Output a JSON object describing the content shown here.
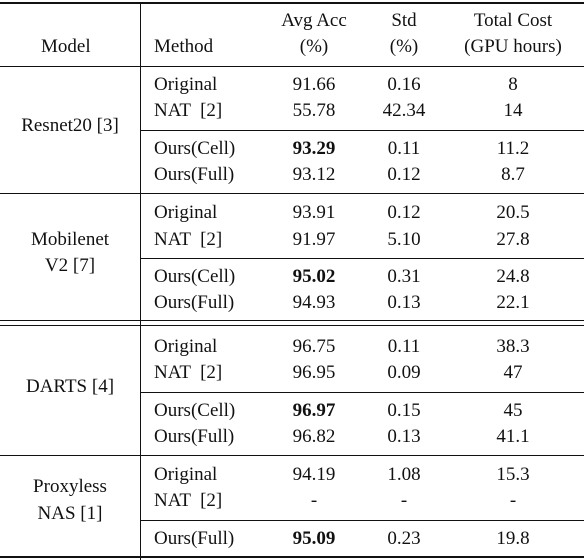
{
  "table": {
    "header": {
      "model": "Model",
      "method": "Method",
      "avg_acc_1": "Avg Acc",
      "avg_acc_2": "(%)",
      "std_1": "Std",
      "std_2": "(%)",
      "cost_1": "Total Cost",
      "cost_2": "(GPU hours)"
    },
    "groups": [
      {
        "model_lines": [
          "Resnet20 [3]"
        ],
        "rows": [
          {
            "method": "Original",
            "acc": "91.66",
            "std": "0.16",
            "cost": "8",
            "bold": false
          },
          {
            "method": "NAT  [2]",
            "acc": "55.78",
            "std": "42.34",
            "cost": "14",
            "bold": false
          },
          {
            "method": "Ours(Cell)",
            "acc": "93.29",
            "std": "0.11",
            "cost": "11.2",
            "bold": true
          },
          {
            "method": "Ours(Full)",
            "acc": "93.12",
            "std": "0.12",
            "cost": "8.7",
            "bold": false
          }
        ]
      },
      {
        "model_lines": [
          "Mobilenet",
          "V2 [7]"
        ],
        "rows": [
          {
            "method": "Original",
            "acc": "93.91",
            "std": "0.12",
            "cost": "20.5",
            "bold": false
          },
          {
            "method": "NAT  [2]",
            "acc": "91.97",
            "std": "5.10",
            "cost": "27.8",
            "bold": false
          },
          {
            "method": "Ours(Cell)",
            "acc": "95.02",
            "std": "0.31",
            "cost": "24.8",
            "bold": true
          },
          {
            "method": "Ours(Full)",
            "acc": "94.93",
            "std": "0.13",
            "cost": "22.1",
            "bold": false
          }
        ]
      },
      {
        "model_lines": [
          "DARTS [4]"
        ],
        "rows": [
          {
            "method": "Original",
            "acc": "96.75",
            "std": "0.11",
            "cost": "38.3",
            "bold": false
          },
          {
            "method": "NAT  [2]",
            "acc": "96.95",
            "std": "0.09",
            "cost": "47",
            "bold": false
          },
          {
            "method": "Ours(Cell)",
            "acc": "96.97",
            "std": "0.15",
            "cost": "45",
            "bold": true
          },
          {
            "method": "Ours(Full)",
            "acc": "96.82",
            "std": "0.13",
            "cost": "41.1",
            "bold": false
          }
        ]
      },
      {
        "model_lines": [
          "Proxyless",
          "NAS [1]"
        ],
        "rows": [
          {
            "method": "Original",
            "acc": "94.19",
            "std": "1.08",
            "cost": "15.3",
            "bold": false
          },
          {
            "method": "NAT  [2]",
            "acc": "-",
            "std": "-",
            "cost": "-",
            "bold": false
          },
          {
            "method": "Ours(Full)",
            "acc": "95.09",
            "std": "0.23",
            "cost": "19.8",
            "bold": true
          }
        ]
      }
    ]
  }
}
